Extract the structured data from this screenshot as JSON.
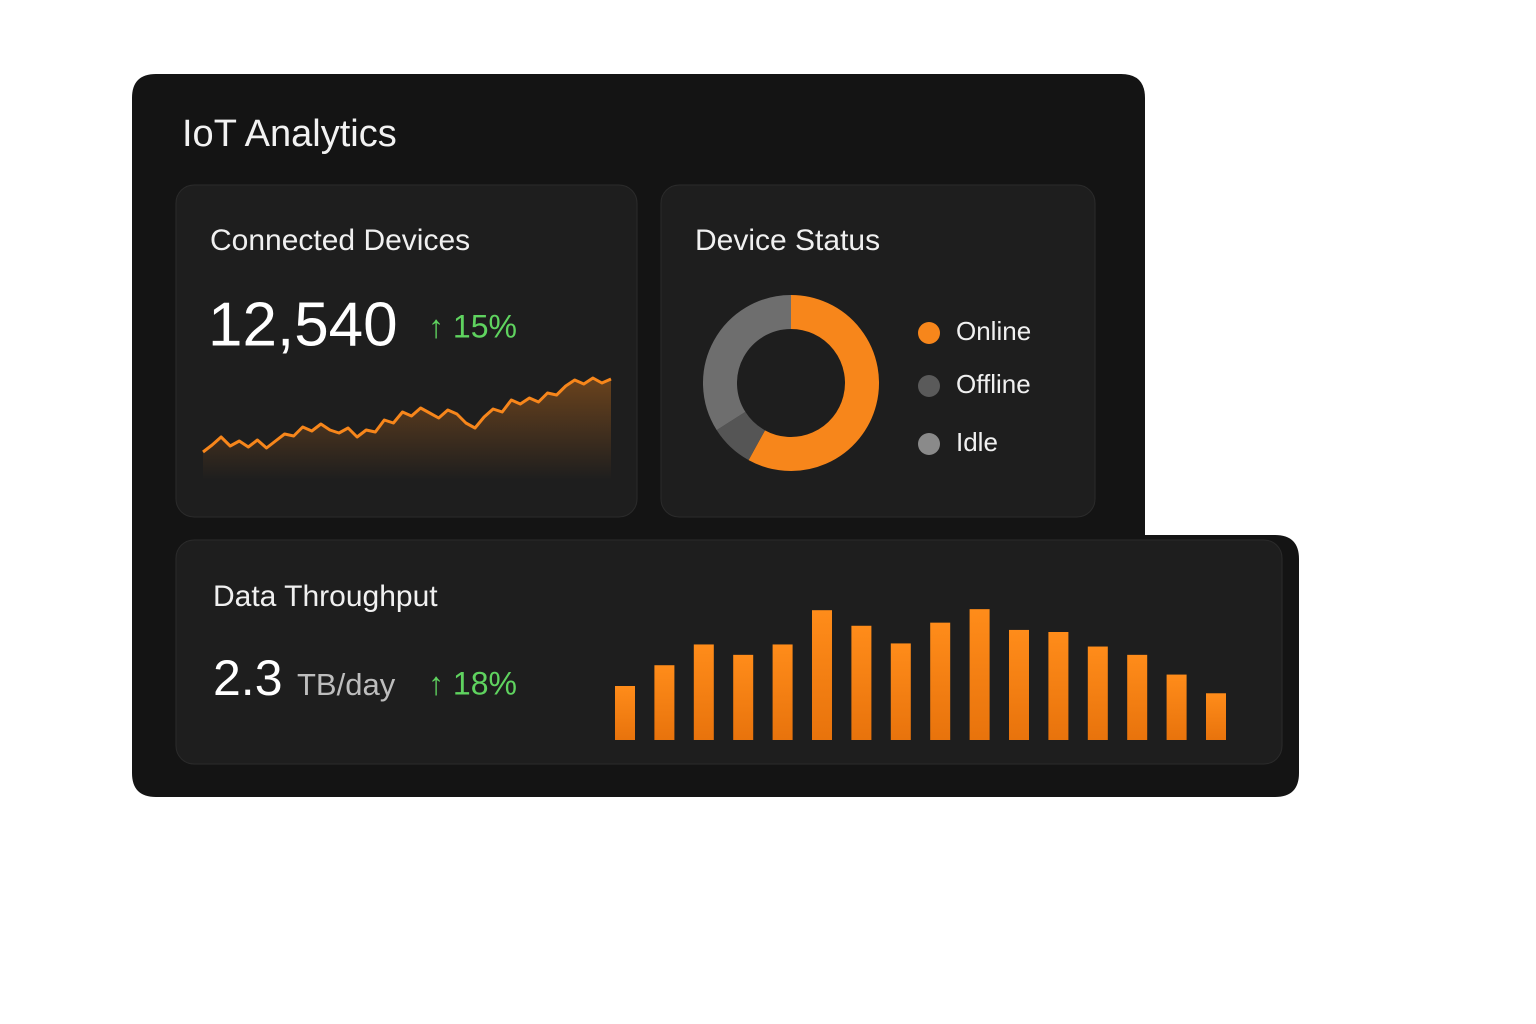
{
  "header": {
    "title": "IoT Analytics"
  },
  "connected_devices": {
    "title": "Connected Devices",
    "value": "12,540",
    "change": "↑ 15%",
    "trend": [
      28,
      35,
      43,
      34,
      39,
      33,
      40,
      32,
      39,
      46,
      44,
      53,
      49,
      56,
      50,
      47,
      52,
      43,
      50,
      48,
      60,
      57,
      68,
      64,
      72,
      67,
      62,
      70,
      66,
      57,
      52,
      63,
      71,
      68,
      80,
      76,
      82,
      78,
      87,
      85,
      94,
      100,
      96,
      102,
      97,
      101
    ],
    "ylim": [
      0,
      120
    ],
    "color": "#f7861b"
  },
  "device_status": {
    "title": "Device Status",
    "series": [
      {
        "name": "Online",
        "color": "#f7861b",
        "value": 58
      },
      {
        "name": "Offline",
        "color": "#555555",
        "value": 8
      },
      {
        "name": "Idle",
        "color": "#6e6e6e",
        "value": 34
      }
    ]
  },
  "data_throughput": {
    "title": "Data Throughput",
    "value": "2.3",
    "unit": "TB/day",
    "change": "↑ 18%",
    "bars": [
      52,
      72,
      92,
      82,
      92,
      125,
      110,
      93,
      113,
      126,
      106,
      104,
      90,
      82,
      63,
      45
    ],
    "ylim": [
      0,
      130
    ],
    "color": "#f7861b"
  }
}
